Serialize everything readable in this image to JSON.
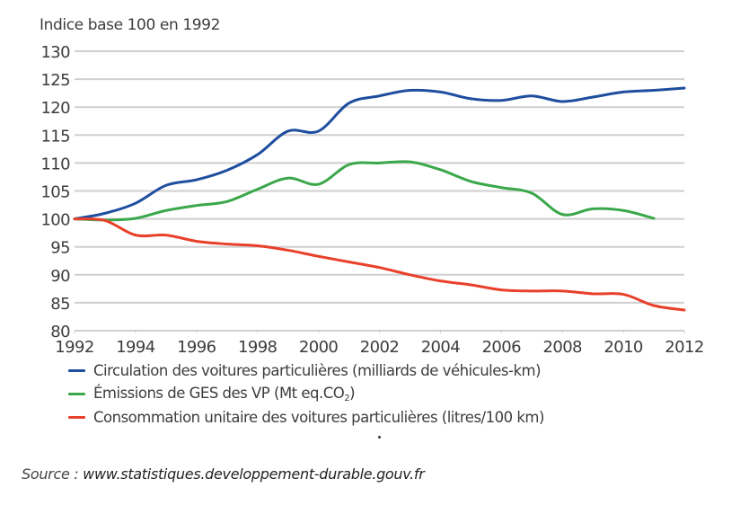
{
  "chart_data": {
    "type": "line",
    "title": "",
    "ylabel": "Indice base 100 en 1992",
    "xlabel": "",
    "x": [
      1992,
      1993,
      1994,
      1995,
      1996,
      1997,
      1998,
      1999,
      2000,
      2001,
      2002,
      2003,
      2004,
      2005,
      2006,
      2007,
      2008,
      2009,
      2010,
      2011,
      2012
    ],
    "xticks": [
      "1992",
      "1994",
      "1996",
      "1998",
      "2000",
      "2002",
      "2004",
      "2006",
      "2008",
      "2010",
      "2012"
    ],
    "yticks": [
      "80",
      "85",
      "90",
      "95",
      "100",
      "105",
      "110",
      "115",
      "120",
      "125",
      "130"
    ],
    "xlim": [
      1992,
      2012
    ],
    "ylim": [
      80,
      130
    ],
    "grid": "horizontal",
    "legend_position": "bottom",
    "series": [
      {
        "name": "Circulation des voitures particulières (milliards de véhicules-km)",
        "color": "#1f4e9f",
        "values": [
          100,
          101,
          102.8,
          106,
          107,
          108.7,
          111.5,
          115.7,
          115.7,
          120.7,
          122,
          123,
          122.7,
          121.5,
          121.2,
          122,
          121,
          121.8,
          122.7,
          123,
          123.4
        ]
      },
      {
        "name": "Émissions de GES des VP (Mt eq.CO2)",
        "label_main": "Émissions de GES des VP (Mt eq.CO",
        "label_sub": "2",
        "label_end": ")",
        "color": "#3aa84a",
        "values": [
          100,
          99.8,
          100.1,
          101.5,
          102.4,
          103.1,
          105.3,
          107.3,
          106.2,
          109.7,
          110,
          110.2,
          108.8,
          106.7,
          105.6,
          104.6,
          100.8,
          101.8,
          101.5,
          100.1,
          null
        ]
      },
      {
        "name": "Consommation unitaire des voitures particulières (litres/100 km)",
        "color": "#e8402a",
        "values": [
          100,
          99.7,
          97.1,
          97.1,
          96,
          95.5,
          95.2,
          94.4,
          93.3,
          92.3,
          91.3,
          90,
          88.9,
          88.2,
          87.3,
          87.1,
          87.1,
          86.6,
          86.5,
          84.5,
          83.7
        ]
      }
    ]
  },
  "source": {
    "label": "Source : ",
    "url_text": "www.statistiques.developpement-durable.gouv.fr"
  }
}
